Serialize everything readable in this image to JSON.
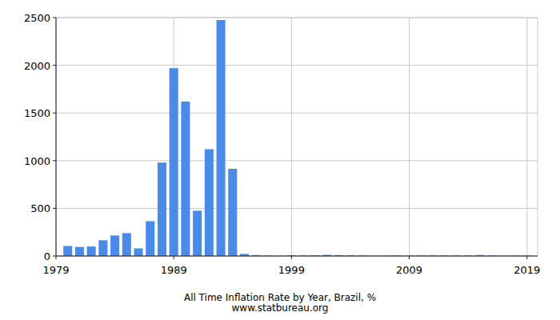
{
  "chart_data": {
    "type": "bar",
    "title": "All Time Inflation Rate by Year, Brazil, %",
    "subtitle": "www.statbureau.org",
    "x": [
      1980,
      1981,
      1982,
      1983,
      1984,
      1985,
      1986,
      1987,
      1988,
      1989,
      1990,
      1991,
      1992,
      1993,
      1994,
      1995,
      1996,
      1997,
      1998,
      1999,
      2000,
      2001,
      2002,
      2003,
      2004,
      2005,
      2006,
      2007,
      2008,
      2009,
      2010,
      2011,
      2012,
      2013,
      2014,
      2015,
      2016,
      2017,
      2018,
      2019
    ],
    "values": [
      105,
      95,
      100,
      165,
      215,
      240,
      80,
      365,
      980,
      1970,
      1620,
      475,
      1120,
      2475,
      915,
      22,
      9.6,
      5.2,
      1.7,
      8.9,
      6,
      7.7,
      12.5,
      9.3,
      7.6,
      5.7,
      3.1,
      4.5,
      5.9,
      4.3,
      5.9,
      6.5,
      5.8,
      5.9,
      6.4,
      10.7,
      6.3,
      2.9,
      3.7,
      4.3
    ],
    "color": "#4a8ae8",
    "xlim": [
      1979,
      2019.9
    ],
    "xticks": [
      1979,
      1989,
      1999,
      2009,
      2019
    ],
    "ylim": [
      0,
      2500
    ],
    "yticks": [
      0,
      500,
      1000,
      1500,
      2000,
      2500
    ],
    "grid": true
  }
}
